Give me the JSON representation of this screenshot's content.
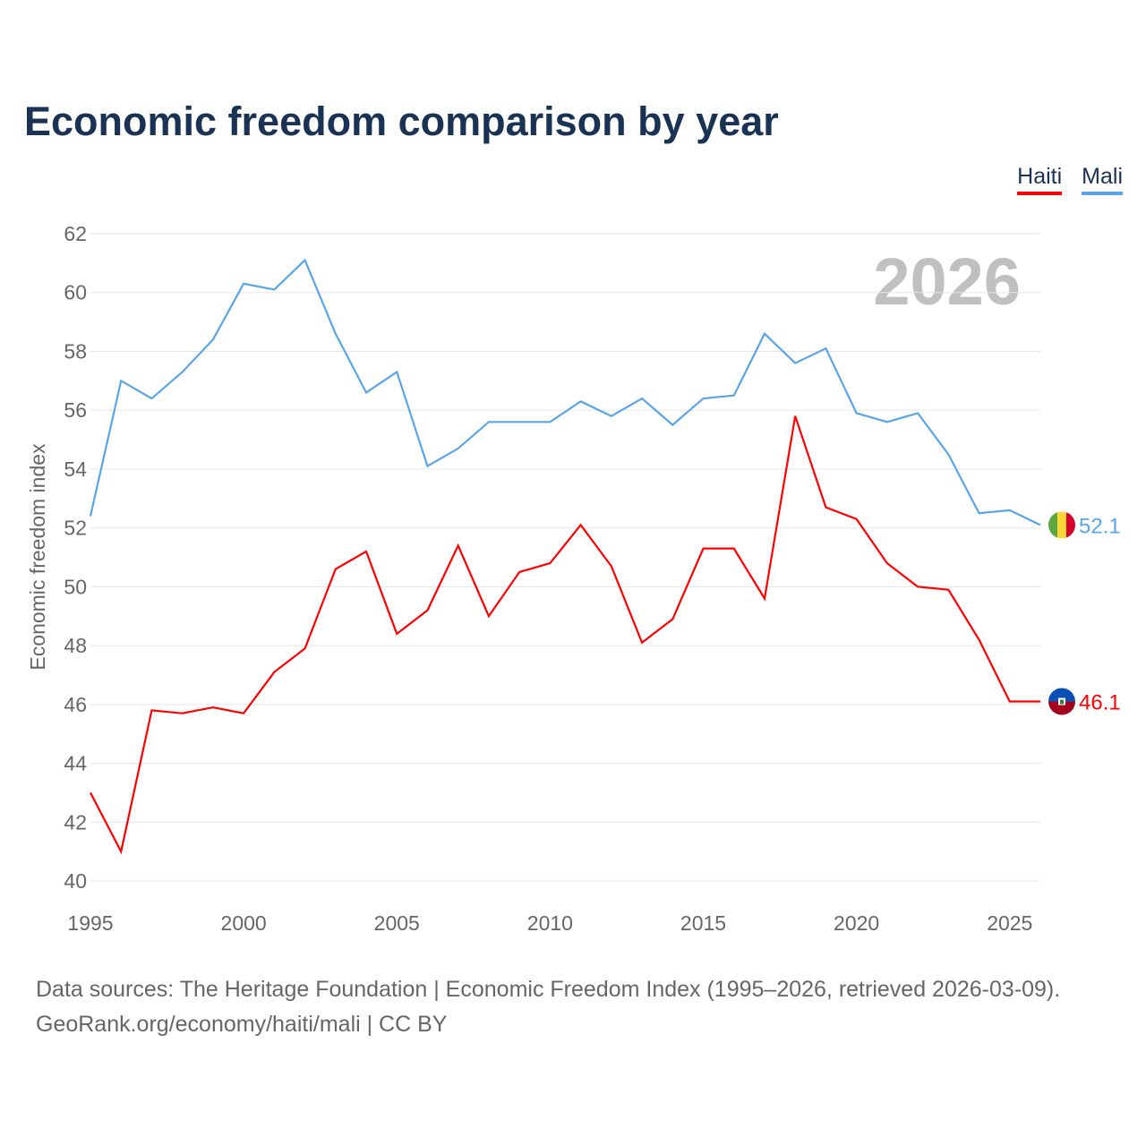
{
  "title": "Economic freedom comparison by year",
  "watermark_year": "2026",
  "source_line1": "Data sources: The Heritage Foundation | Economic Freedom Index (1995–2026, retrieved 2026-03-09).",
  "source_line2": "GeoRank.org/economy/haiti/mali | CC BY",
  "chart_data": {
    "type": "line",
    "title": "Economic freedom comparison by year",
    "xlabel": "",
    "ylabel": "Economic freedom index",
    "xlim": [
      1995,
      2026
    ],
    "ylim": [
      40,
      62
    ],
    "xticks": [
      1995,
      2000,
      2005,
      2010,
      2015,
      2020,
      2025
    ],
    "yticks": [
      40,
      42,
      44,
      46,
      48,
      50,
      52,
      54,
      56,
      58,
      60,
      62
    ],
    "grid": true,
    "legend_position": "top-right",
    "x": [
      1995,
      1996,
      1997,
      1998,
      1999,
      2000,
      2001,
      2002,
      2003,
      2004,
      2005,
      2006,
      2007,
      2008,
      2009,
      2010,
      2011,
      2012,
      2013,
      2014,
      2015,
      2016,
      2017,
      2018,
      2019,
      2020,
      2021,
      2022,
      2023,
      2024,
      2025,
      2026
    ],
    "series": [
      {
        "name": "Haiti",
        "color": "#ff0000",
        "end_label": "46.1",
        "values": [
          43.0,
          41.0,
          45.8,
          45.7,
          45.9,
          45.7,
          47.1,
          47.9,
          50.6,
          51.2,
          48.4,
          49.2,
          51.4,
          49.0,
          50.5,
          50.8,
          52.1,
          50.7,
          48.1,
          48.9,
          51.3,
          51.3,
          49.6,
          55.8,
          52.7,
          52.3,
          50.8,
          50.0,
          49.9,
          48.2,
          46.1,
          46.1
        ]
      },
      {
        "name": "Mali",
        "color": "#5aa5e8",
        "end_label": "52.1",
        "values": [
          52.4,
          57.0,
          56.4,
          57.3,
          58.4,
          60.3,
          60.1,
          61.1,
          58.6,
          56.6,
          57.3,
          54.1,
          54.7,
          55.6,
          55.6,
          55.6,
          56.3,
          55.8,
          56.4,
          55.5,
          56.4,
          56.5,
          58.6,
          57.6,
          58.1,
          55.9,
          55.6,
          55.9,
          54.5,
          52.5,
          52.6,
          52.1
        ]
      }
    ]
  }
}
